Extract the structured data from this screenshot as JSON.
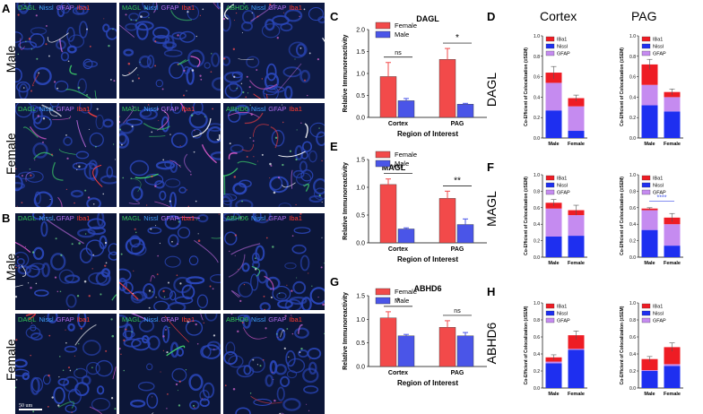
{
  "panel_labels": {
    "A": "A",
    "B": "B",
    "C": "C",
    "D": "D",
    "E": "E",
    "F": "F",
    "G": "G",
    "H": "H"
  },
  "row_labels": {
    "a_top": "Male",
    "a_bottom": "Female",
    "b_top": "Male",
    "b_bottom": "Female"
  },
  "micro_labels": {
    "col1": [
      "DAGL",
      "Nissl",
      "GFAP",
      "Iba1"
    ],
    "col2": [
      "MAGL",
      "Nissl",
      "GFAP",
      "Iba1"
    ],
    "col3": [
      "ABHD6",
      "Nissl",
      "GFAP",
      "Iba1"
    ]
  },
  "scale_bar": "50 um",
  "column_titles": {
    "cortex": "Cortex",
    "pag": "PAG"
  },
  "row_titles_right": {
    "d": "DAGL",
    "f": "MAGL",
    "h": "ABHD6"
  },
  "colors": {
    "female": "#f24a4a",
    "male": "#4a55e8",
    "iba1": "#ee1c24",
    "nissl": "#1e2ff0",
    "gfap": "#c58bf0"
  },
  "chart_data": [
    {
      "type": "bar",
      "panel": "C",
      "title": "DAGL",
      "xlabel": "Region of Interest",
      "ylabel": "Relative Immunoreactivity",
      "categories": [
        "Cortex",
        "PAG"
      ],
      "ylim": [
        0,
        2.0
      ],
      "yticks": [
        "0.0",
        "0.5",
        "1.0",
        "1.5",
        "2.0"
      ],
      "series": [
        {
          "name": "Female",
          "values": [
            0.93,
            1.32
          ],
          "errors": [
            0.32,
            0.25
          ]
        },
        {
          "name": "Male",
          "values": [
            0.38,
            0.3
          ],
          "errors": [
            0.05,
            0.02
          ]
        }
      ],
      "annotations": [
        "ns",
        "*"
      ],
      "legend": "top-left"
    },
    {
      "type": "bar",
      "panel": "E",
      "title": "MAGL",
      "xlabel": "Region of Interest",
      "ylabel": "Relative Immunoreactivity",
      "categories": [
        "Cortex",
        "PAG"
      ],
      "ylim": [
        0,
        1.5
      ],
      "yticks": [
        "0.0",
        "0.5",
        "1.0",
        "1.5"
      ],
      "series": [
        {
          "name": "Female",
          "values": [
            1.05,
            0.8
          ],
          "errors": [
            0.1,
            0.13
          ]
        },
        {
          "name": "Male",
          "values": [
            0.25,
            0.33
          ],
          "errors": [
            0.02,
            0.1
          ]
        }
      ],
      "annotations": [
        "***",
        "**"
      ],
      "legend": "top-left"
    },
    {
      "type": "bar",
      "panel": "G",
      "title": "ABHD6",
      "xlabel": "Region of Interest",
      "ylabel": "Relative Immunoreactivity",
      "categories": [
        "Cortex",
        "PAG"
      ],
      "ylim": [
        0,
        1.5
      ],
      "yticks": [
        "0.0",
        "0.5",
        "1.0",
        "1.5"
      ],
      "series": [
        {
          "name": "Female",
          "values": [
            1.03,
            0.83
          ],
          "errors": [
            0.13,
            0.14
          ]
        },
        {
          "name": "Male",
          "values": [
            0.65,
            0.65
          ],
          "errors": [
            0.03,
            0.07
          ]
        }
      ],
      "annotations": [
        "*",
        "ns"
      ],
      "legend": "top-left"
    },
    {
      "type": "bar",
      "panel": "D-Cortex",
      "stacked": true,
      "ylabel": "Co-Efficient of Colocalization (±SEM)",
      "categories": [
        "Male",
        "Female"
      ],
      "ylim": [
        0,
        1.0
      ],
      "yticks": [
        "0.0",
        "0.2",
        "0.4",
        "0.6",
        "0.8",
        "1.0"
      ],
      "series": [
        {
          "name": "IBa1",
          "values": [
            0.1,
            0.08
          ]
        },
        {
          "name": "Nissl",
          "values": [
            0.27,
            0.07
          ]
        },
        {
          "name": "GFAP",
          "values": [
            0.27,
            0.24
          ]
        }
      ],
      "errors": [
        0.06,
        0.03
      ],
      "legend": "top-left"
    },
    {
      "type": "bar",
      "panel": "D-PAG",
      "stacked": true,
      "ylabel": "Co-Efficient of Colocalization (±SEM)",
      "categories": [
        "Male",
        "Female"
      ],
      "ylim": [
        0,
        1.0
      ],
      "yticks": [
        "0.0",
        "0.2",
        "0.4",
        "0.6",
        "0.8",
        "1.0"
      ],
      "series": [
        {
          "name": "IBa1",
          "values": [
            0.2,
            0.05
          ]
        },
        {
          "name": "Nissl",
          "values": [
            0.32,
            0.26
          ]
        },
        {
          "name": "GFAP",
          "values": [
            0.2,
            0.14
          ]
        }
      ],
      "errors": [
        0.05,
        0.03
      ],
      "legend": "top-left"
    },
    {
      "type": "bar",
      "panel": "F-Cortex",
      "stacked": true,
      "ylabel": "Co-Efficient of Colocalization (±SEM)",
      "categories": [
        "Male",
        "Female"
      ],
      "ylim": [
        0,
        1.0
      ],
      "yticks": [
        "0.0",
        "0.2",
        "0.4",
        "0.6",
        "0.8",
        "1.0"
      ],
      "series": [
        {
          "name": "IBa1",
          "values": [
            0.07,
            0.06
          ]
        },
        {
          "name": "Nissl",
          "values": [
            0.25,
            0.26
          ]
        },
        {
          "name": "GFAP",
          "values": [
            0.34,
            0.25
          ]
        }
      ],
      "errors": [
        0.04,
        0.06
      ],
      "legend": "top-left"
    },
    {
      "type": "bar",
      "panel": "F-PAG",
      "stacked": true,
      "ylabel": "Co-Efficient of Colocalization (±SEM)",
      "categories": [
        "Male",
        "Female"
      ],
      "ylim": [
        0,
        1.0
      ],
      "yticks": [
        "0.0",
        "0.2",
        "0.4",
        "0.6",
        "0.8",
        "1.0"
      ],
      "series": [
        {
          "name": "IBa1",
          "values": [
            0.02,
            0.08
          ]
        },
        {
          "name": "Nissl",
          "values": [
            0.33,
            0.14
          ]
        },
        {
          "name": "GFAP",
          "values": [
            0.24,
            0.26
          ]
        }
      ],
      "errors": [
        0.01,
        0.05
      ],
      "annotations": [
        "****"
      ],
      "legend": "top-left"
    },
    {
      "type": "bar",
      "panel": "H-Cortex",
      "stacked": true,
      "ylabel": "Co-Efficient of Colocalization (±SEM)",
      "categories": [
        "Male",
        "Female"
      ],
      "ylim": [
        0,
        1.0
      ],
      "yticks": [
        "0.0",
        "0.2",
        "0.4",
        "0.6",
        "0.8",
        "1.0"
      ],
      "series": [
        {
          "name": "IBa1",
          "values": [
            0.05,
            0.16
          ]
        },
        {
          "name": "Nissl",
          "values": [
            0.29,
            0.45
          ]
        },
        {
          "name": "GFAP",
          "values": [
            0.02,
            0.01
          ]
        }
      ],
      "errors": [
        0.03,
        0.05
      ],
      "legend": "top-left"
    },
    {
      "type": "bar",
      "panel": "H-PAG",
      "stacked": true,
      "ylabel": "Co-Efficient of Colocalization (±SEM)",
      "categories": [
        "Male",
        "Female"
      ],
      "ylim": [
        0,
        1.0
      ],
      "yticks": [
        "0.0",
        "0.2",
        "0.4",
        "0.6",
        "0.8",
        "1.0"
      ],
      "series": [
        {
          "name": "IBa1",
          "values": [
            0.13,
            0.2
          ]
        },
        {
          "name": "Nissl",
          "values": [
            0.2,
            0.26
          ]
        },
        {
          "name": "GFAP",
          "values": [
            0.01,
            0.02
          ]
        }
      ],
      "errors": [
        0.03,
        0.05
      ],
      "legend": "top-left"
    }
  ]
}
